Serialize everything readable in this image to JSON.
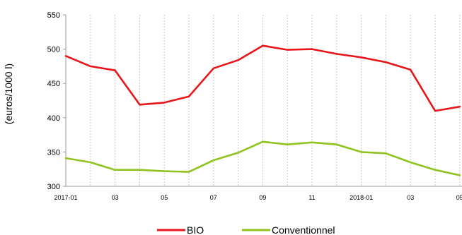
{
  "chart_data": {
    "type": "line",
    "ylabel": "(euros/1000 l)",
    "ylim": [
      300,
      550
    ],
    "yticks": [
      300,
      350,
      400,
      450,
      500,
      550
    ],
    "x": [
      "2017-01",
      "2017-02",
      "2017-03",
      "2017-04",
      "2017-05",
      "2017-06",
      "2017-07",
      "2017-08",
      "2017-09",
      "2017-10",
      "2017-11",
      "2017-12",
      "2018-01",
      "2018-02",
      "2018-03",
      "2018-04",
      "2018-05"
    ],
    "xtick_labels": [
      "2017-01",
      "",
      "03",
      "",
      "05",
      "",
      "07",
      "",
      "09",
      "",
      "11",
      "",
      "2018-01",
      "",
      "03",
      "",
      "05"
    ],
    "grid": "vertical-dashed",
    "legend_position": "bottom",
    "series": [
      {
        "name": "BIO",
        "color": "#e8161b",
        "values": [
          490,
          475,
          469,
          419,
          422,
          431,
          472,
          484,
          505,
          499,
          500,
          493,
          488,
          481,
          470,
          410,
          416
        ]
      },
      {
        "name": "Conventionnel",
        "color": "#8fc31f",
        "values": [
          341,
          335,
          324,
          324,
          322,
          321,
          338,
          349,
          365,
          361,
          364,
          361,
          350,
          348,
          335,
          324,
          316
        ]
      }
    ]
  }
}
